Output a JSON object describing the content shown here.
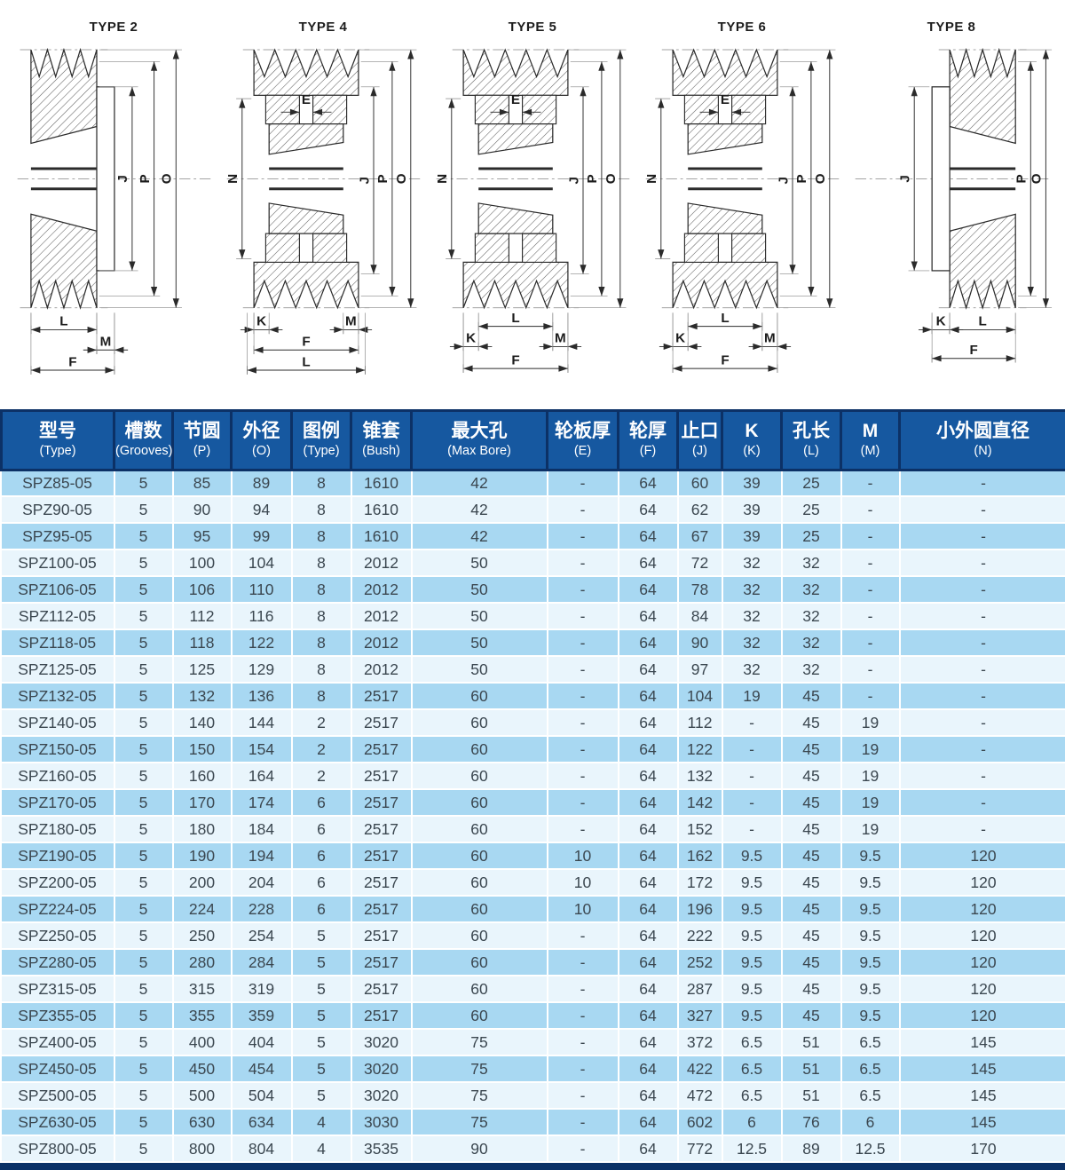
{
  "colors": {
    "header_bg": "#1658A0",
    "header_divider": "#0C3166",
    "row_odd": "#A8D8F2",
    "row_even": "#E9F5FC",
    "body_text": "#3B4750",
    "header_text": "#FFFFFF"
  },
  "drawings": [
    {
      "title": "TYPE 2",
      "variant": "flange-right",
      "dim_top": "",
      "dims_left": [],
      "dims_right": [
        "J",
        "P",
        "O"
      ],
      "dims_bottom": [
        "L",
        "M",
        "F"
      ]
    },
    {
      "title": "TYPE 4",
      "variant": "bush-center",
      "dim_top": "E",
      "dims_left": [
        "N"
      ],
      "dims_right": [
        "J",
        "P",
        "O"
      ],
      "dims_bottom": [
        "K",
        "M",
        "F",
        "L"
      ]
    },
    {
      "title": "TYPE 5",
      "variant": "bush-center",
      "dim_top": "E",
      "dims_left": [
        "N"
      ],
      "dims_right": [
        "J",
        "P",
        "O"
      ],
      "dims_bottom": [
        "L",
        "K",
        "M",
        "F"
      ]
    },
    {
      "title": "TYPE 6",
      "variant": "bush-center",
      "dim_top": "E",
      "dims_left": [
        "N"
      ],
      "dims_right": [
        "J",
        "P",
        "O"
      ],
      "dims_bottom": [
        "L",
        "K",
        "M",
        "F"
      ]
    },
    {
      "title": "TYPE 8",
      "variant": "flange-left",
      "dim_top": "",
      "dims_left": [
        "J"
      ],
      "dims_right": [
        "P",
        "O"
      ],
      "dims_bottom": [
        "K",
        "L",
        "F"
      ]
    }
  ],
  "table": {
    "columns": [
      {
        "zh": "型号",
        "en": "(Type)"
      },
      {
        "zh": "槽数",
        "en": "(Grooves)"
      },
      {
        "zh": "节圆",
        "en": "(P)"
      },
      {
        "zh": "外径",
        "en": "(O)"
      },
      {
        "zh": "图例",
        "en": "(Type)"
      },
      {
        "zh": "锥套",
        "en": "(Bush)"
      },
      {
        "zh": "最大孔",
        "en": "(Max Bore)"
      },
      {
        "zh": "轮板厚",
        "en": "(E)"
      },
      {
        "zh": "轮厚",
        "en": "(F)"
      },
      {
        "zh": "止口",
        "en": "(J)"
      },
      {
        "zh": "K",
        "en": "(K)"
      },
      {
        "zh": "孔长",
        "en": "(L)"
      },
      {
        "zh": "M",
        "en": "(M)"
      },
      {
        "zh": "小外圆直径",
        "en": "(N)"
      }
    ],
    "rows": [
      [
        "SPZ85-05",
        "5",
        "85",
        "89",
        "8",
        "1610",
        "42",
        "-",
        "64",
        "60",
        "39",
        "25",
        "-",
        "-"
      ],
      [
        "SPZ90-05",
        "5",
        "90",
        "94",
        "8",
        "1610",
        "42",
        "-",
        "64",
        "62",
        "39",
        "25",
        "-",
        "-"
      ],
      [
        "SPZ95-05",
        "5",
        "95",
        "99",
        "8",
        "1610",
        "42",
        "-",
        "64",
        "67",
        "39",
        "25",
        "-",
        "-"
      ],
      [
        "SPZ100-05",
        "5",
        "100",
        "104",
        "8",
        "2012",
        "50",
        "-",
        "64",
        "72",
        "32",
        "32",
        "-",
        "-"
      ],
      [
        "SPZ106-05",
        "5",
        "106",
        "110",
        "8",
        "2012",
        "50",
        "-",
        "64",
        "78",
        "32",
        "32",
        "-",
        "-"
      ],
      [
        "SPZ112-05",
        "5",
        "112",
        "116",
        "8",
        "2012",
        "50",
        "-",
        "64",
        "84",
        "32",
        "32",
        "-",
        "-"
      ],
      [
        "SPZ118-05",
        "5",
        "118",
        "122",
        "8",
        "2012",
        "50",
        "-",
        "64",
        "90",
        "32",
        "32",
        "-",
        "-"
      ],
      [
        "SPZ125-05",
        "5",
        "125",
        "129",
        "8",
        "2012",
        "50",
        "-",
        "64",
        "97",
        "32",
        "32",
        "-",
        "-"
      ],
      [
        "SPZ132-05",
        "5",
        "132",
        "136",
        "8",
        "2517",
        "60",
        "-",
        "64",
        "104",
        "19",
        "45",
        "-",
        "-"
      ],
      [
        "SPZ140-05",
        "5",
        "140",
        "144",
        "2",
        "2517",
        "60",
        "-",
        "64",
        "112",
        "-",
        "45",
        "19",
        "-"
      ],
      [
        "SPZ150-05",
        "5",
        "150",
        "154",
        "2",
        "2517",
        "60",
        "-",
        "64",
        "122",
        "-",
        "45",
        "19",
        "-"
      ],
      [
        "SPZ160-05",
        "5",
        "160",
        "164",
        "2",
        "2517",
        "60",
        "-",
        "64",
        "132",
        "-",
        "45",
        "19",
        "-"
      ],
      [
        "SPZ170-05",
        "5",
        "170",
        "174",
        "6",
        "2517",
        "60",
        "-",
        "64",
        "142",
        "-",
        "45",
        "19",
        "-"
      ],
      [
        "SPZ180-05",
        "5",
        "180",
        "184",
        "6",
        "2517",
        "60",
        "-",
        "64",
        "152",
        "-",
        "45",
        "19",
        "-"
      ],
      [
        "SPZ190-05",
        "5",
        "190",
        "194",
        "6",
        "2517",
        "60",
        "10",
        "64",
        "162",
        "9.5",
        "45",
        "9.5",
        "120"
      ],
      [
        "SPZ200-05",
        "5",
        "200",
        "204",
        "6",
        "2517",
        "60",
        "10",
        "64",
        "172",
        "9.5",
        "45",
        "9.5",
        "120"
      ],
      [
        "SPZ224-05",
        "5",
        "224",
        "228",
        "6",
        "2517",
        "60",
        "10",
        "64",
        "196",
        "9.5",
        "45",
        "9.5",
        "120"
      ],
      [
        "SPZ250-05",
        "5",
        "250",
        "254",
        "5",
        "2517",
        "60",
        "-",
        "64",
        "222",
        "9.5",
        "45",
        "9.5",
        "120"
      ],
      [
        "SPZ280-05",
        "5",
        "280",
        "284",
        "5",
        "2517",
        "60",
        "-",
        "64",
        "252",
        "9.5",
        "45",
        "9.5",
        "120"
      ],
      [
        "SPZ315-05",
        "5",
        "315",
        "319",
        "5",
        "2517",
        "60",
        "-",
        "64",
        "287",
        "9.5",
        "45",
        "9.5",
        "120"
      ],
      [
        "SPZ355-05",
        "5",
        "355",
        "359",
        "5",
        "2517",
        "60",
        "-",
        "64",
        "327",
        "9.5",
        "45",
        "9.5",
        "120"
      ],
      [
        "SPZ400-05",
        "5",
        "400",
        "404",
        "5",
        "3020",
        "75",
        "-",
        "64",
        "372",
        "6.5",
        "51",
        "6.5",
        "145"
      ],
      [
        "SPZ450-05",
        "5",
        "450",
        "454",
        "5",
        "3020",
        "75",
        "-",
        "64",
        "422",
        "6.5",
        "51",
        "6.5",
        "145"
      ],
      [
        "SPZ500-05",
        "5",
        "500",
        "504",
        "5",
        "3020",
        "75",
        "-",
        "64",
        "472",
        "6.5",
        "51",
        "6.5",
        "145"
      ],
      [
        "SPZ630-05",
        "5",
        "630",
        "634",
        "4",
        "3030",
        "75",
        "-",
        "64",
        "602",
        "6",
        "76",
        "6",
        "145"
      ],
      [
        "SPZ800-05",
        "5",
        "800",
        "804",
        "4",
        "3535",
        "90",
        "-",
        "64",
        "772",
        "12.5",
        "89",
        "12.5",
        "170"
      ]
    ]
  }
}
